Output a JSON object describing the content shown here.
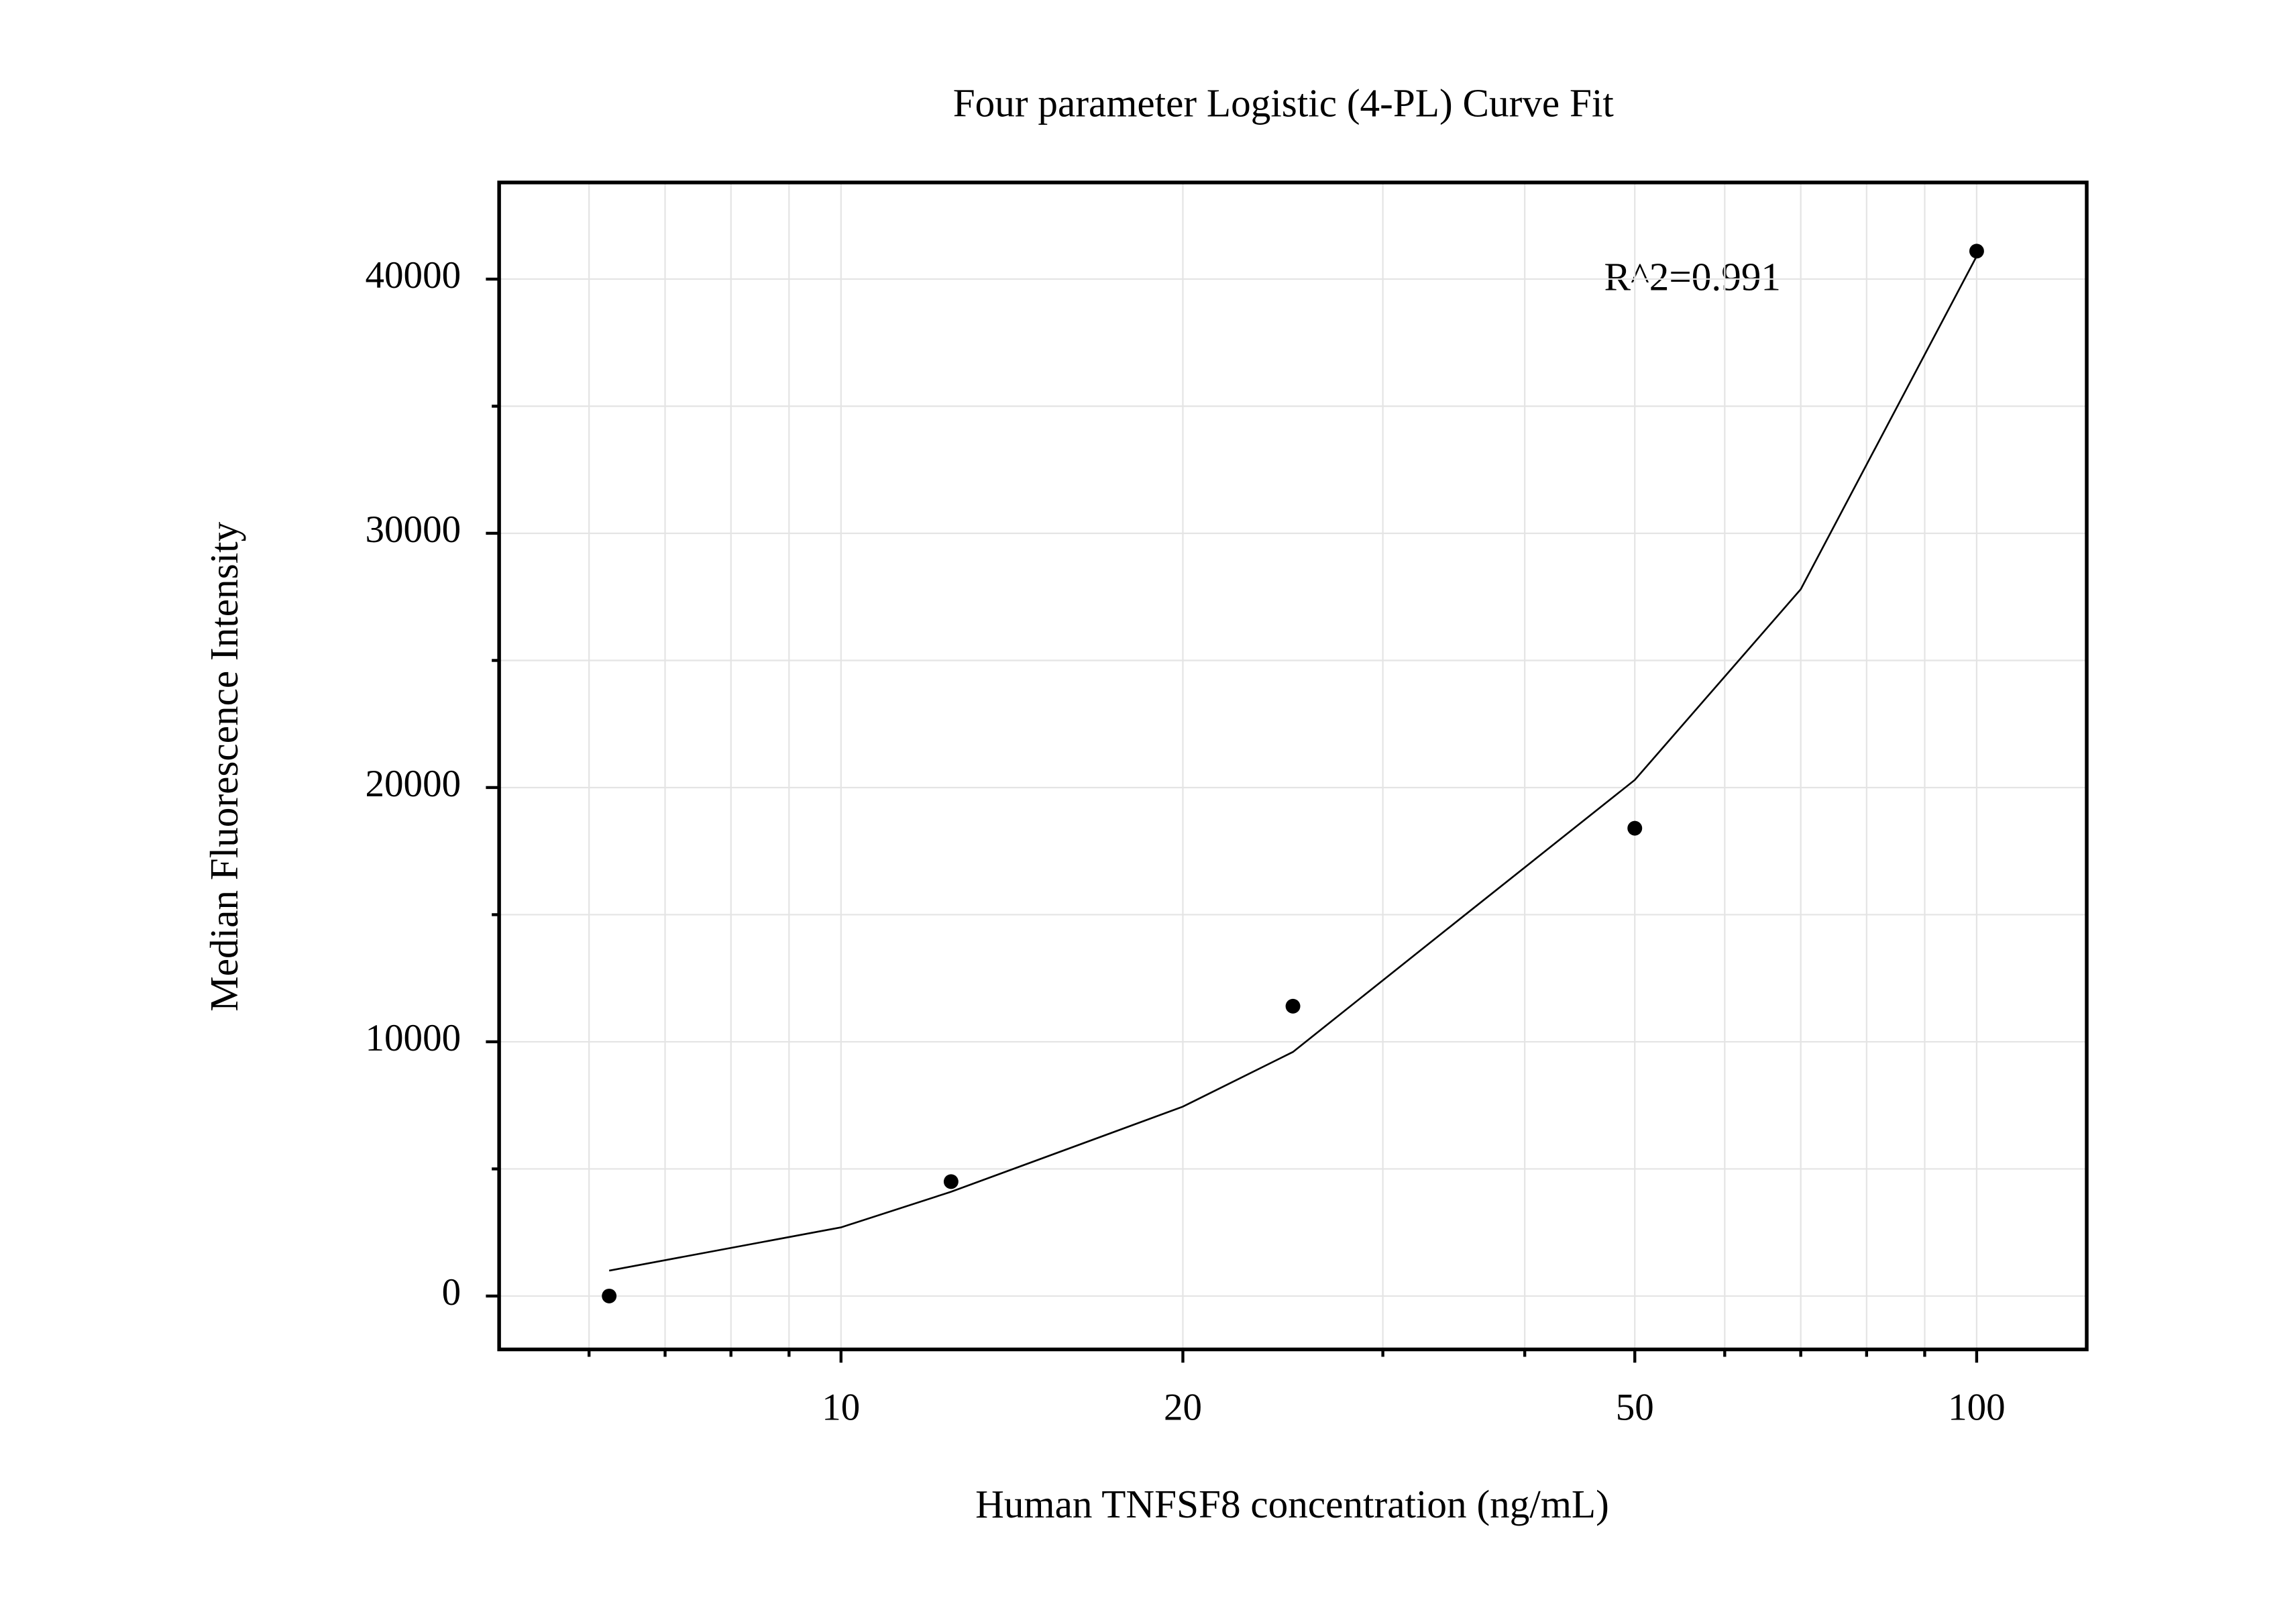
{
  "chart_data": {
    "type": "scatter",
    "title": "Four parameter Logistic (4-PL) Curve Fit",
    "x_label": "Human TNFSF8 concentration (ng/mL)",
    "y_label": "Median Fluorescence Intensity",
    "annotation": "R^2=0.991",
    "xscale": "log",
    "xlim": [
      5,
      125
    ],
    "ylim": [
      -2100,
      43800
    ],
    "xticks": [
      10,
      20,
      50,
      100
    ],
    "xminor_ticks": [
      6,
      7,
      8,
      9,
      30,
      40,
      60,
      70,
      80,
      90
    ],
    "yticks": [
      0,
      10000,
      20000,
      30000,
      40000
    ],
    "yminor_ticks": [
      5000,
      15000,
      25000,
      35000
    ],
    "grid": true,
    "series": [
      {
        "type": "scatter",
        "color": "#000000",
        "x": [
          6.25,
          12.5,
          25,
          50,
          100
        ],
        "values": [
          0,
          4500,
          11400,
          18400,
          41100
        ]
      },
      {
        "type": "line",
        "color": "#000000",
        "x": [
          6.25,
          10,
          12.5,
          20,
          25,
          35,
          50,
          70,
          100
        ],
        "values": [
          1000,
          2700,
          4100,
          7450,
          9600,
          14800,
          20300,
          27800,
          40900
        ]
      }
    ]
  }
}
